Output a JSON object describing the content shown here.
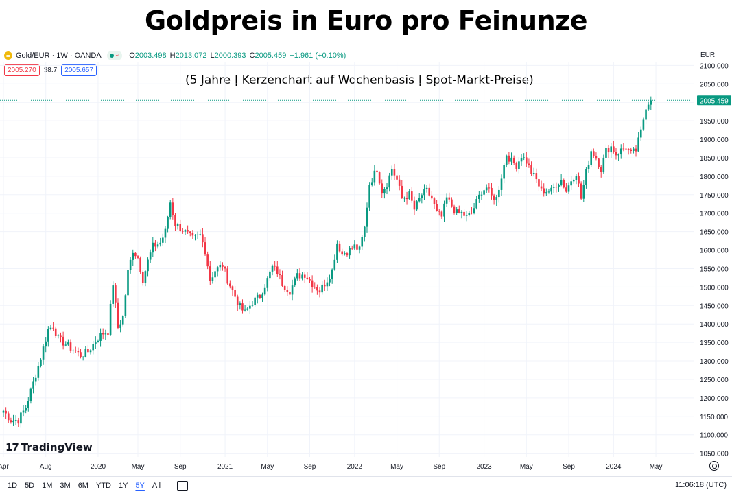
{
  "title": "Goldpreis in Euro pro Feinunze",
  "subtitle": "(5 Jahre | Kerzenchart auf Wochenbasis | Spot-Markt-Preise)",
  "symbol": {
    "name": "Gold/EUR · 1W · OANDA",
    "icon": "gold-coin-icon",
    "open_label": "O",
    "open": "2003.498",
    "high_label": "H",
    "high": "2013.072",
    "low_label": "L",
    "low": "2000.393",
    "close_label": "C",
    "close": "2005.459",
    "change": "+1.961 (+0.10%)"
  },
  "badges": {
    "bid": "2005.270",
    "spread": "38.7",
    "ask": "2005.657"
  },
  "currency": "EUR",
  "watermark": {
    "logo": "17",
    "name": "TradingView"
  },
  "colors": {
    "up": "#089981",
    "down": "#f23645",
    "grid": "#f0f3fa",
    "accent": "#2962ff"
  },
  "chart_data": {
    "type": "candlestick",
    "timeframe": "1W",
    "y_range": [
      1040,
      2110
    ],
    "y_ticks": [
      1050,
      1100,
      1150,
      1200,
      1250,
      1300,
      1350,
      1400,
      1450,
      1500,
      1550,
      1600,
      1650,
      1700,
      1750,
      1800,
      1850,
      1900,
      1950,
      2000,
      2050,
      2100
    ],
    "y_tick_labels": [
      "1050.000",
      "1100.000",
      "1150.000",
      "1200.000",
      "1250.000",
      "1300.000",
      "1350.000",
      "1400.000",
      "1450.000",
      "1500.000",
      "1550.000",
      "1600.000",
      "1650.000",
      "1700.000",
      "1750.000",
      "1800.000",
      "1850.000",
      "1900.000",
      "1950.000",
      "2000.000",
      "2050.000",
      "2100.000"
    ],
    "x_labels": [
      {
        "label": "Apr",
        "week": 0
      },
      {
        "label": "Aug",
        "week": 17
      },
      {
        "label": "2020",
        "week": 38
      },
      {
        "label": "May",
        "week": 54
      },
      {
        "label": "Sep",
        "week": 71
      },
      {
        "label": "2021",
        "week": 89
      },
      {
        "label": "May",
        "week": 106
      },
      {
        "label": "Sep",
        "week": 123
      },
      {
        "label": "2022",
        "week": 141
      },
      {
        "label": "May",
        "week": 158
      },
      {
        "label": "Sep",
        "week": 175
      },
      {
        "label": "2023",
        "week": 193
      },
      {
        "label": "May",
        "week": 210
      },
      {
        "label": "Sep",
        "week": 227
      },
      {
        "label": "2024",
        "week": 245
      },
      {
        "label": "May",
        "week": 262
      }
    ],
    "total_weeks": 270,
    "last_price": 2005.459,
    "last_price_label": "2005.459",
    "anchors": [
      [
        0,
        1165
      ],
      [
        3,
        1140
      ],
      [
        6,
        1140
      ],
      [
        9,
        1175
      ],
      [
        12,
        1240
      ],
      [
        15,
        1310
      ],
      [
        18,
        1385
      ],
      [
        20,
        1395
      ],
      [
        22,
        1360
      ],
      [
        25,
        1345
      ],
      [
        28,
        1330
      ],
      [
        31,
        1315
      ],
      [
        34,
        1325
      ],
      [
        37,
        1355
      ],
      [
        40,
        1375
      ],
      [
        42,
        1380
      ],
      [
        44,
        1510
      ],
      [
        46,
        1390
      ],
      [
        48,
        1420
      ],
      [
        50,
        1540
      ],
      [
        52,
        1600
      ],
      [
        54,
        1580
      ],
      [
        56,
        1520
      ],
      [
        58,
        1570
      ],
      [
        60,
        1610
      ],
      [
        63,
        1620
      ],
      [
        65,
        1650
      ],
      [
        67,
        1730
      ],
      [
        69,
        1670
      ],
      [
        72,
        1655
      ],
      [
        76,
        1630
      ],
      [
        79,
        1640
      ],
      [
        81,
        1600
      ],
      [
        83,
        1520
      ],
      [
        85,
        1545
      ],
      [
        88,
        1560
      ],
      [
        90,
        1520
      ],
      [
        92,
        1490
      ],
      [
        95,
        1445
      ],
      [
        97,
        1430
      ],
      [
        100,
        1460
      ],
      [
        103,
        1475
      ],
      [
        106,
        1520
      ],
      [
        108,
        1555
      ],
      [
        110,
        1540
      ],
      [
        112,
        1510
      ],
      [
        115,
        1490
      ],
      [
        118,
        1530
      ],
      [
        121,
        1535
      ],
      [
        124,
        1510
      ],
      [
        127,
        1490
      ],
      [
        130,
        1520
      ],
      [
        132,
        1545
      ],
      [
        134,
        1620
      ],
      [
        136,
        1590
      ],
      [
        139,
        1600
      ],
      [
        141,
        1610
      ],
      [
        143,
        1600
      ],
      [
        145,
        1660
      ],
      [
        147,
        1780
      ],
      [
        150,
        1820
      ],
      [
        152,
        1760
      ],
      [
        154,
        1780
      ],
      [
        156,
        1820
      ],
      [
        158,
        1790
      ],
      [
        160,
        1740
      ],
      [
        163,
        1750
      ],
      [
        165,
        1710
      ],
      [
        168,
        1750
      ],
      [
        170,
        1760
      ],
      [
        172,
        1740
      ],
      [
        174,
        1700
      ],
      [
        176,
        1690
      ],
      [
        178,
        1740
      ],
      [
        180,
        1720
      ],
      [
        182,
        1700
      ],
      [
        184,
        1700
      ],
      [
        186,
        1690
      ],
      [
        188,
        1700
      ],
      [
        190,
        1730
      ],
      [
        192,
        1760
      ],
      [
        194,
        1770
      ],
      [
        196,
        1745
      ],
      [
        198,
        1740
      ],
      [
        200,
        1800
      ],
      [
        202,
        1860
      ],
      [
        204,
        1840
      ],
      [
        206,
        1830
      ],
      [
        208,
        1855
      ],
      [
        210,
        1840
      ],
      [
        212,
        1810
      ],
      [
        214,
        1790
      ],
      [
        216,
        1760
      ],
      [
        218,
        1760
      ],
      [
        220,
        1760
      ],
      [
        222,
        1780
      ],
      [
        224,
        1790
      ],
      [
        226,
        1760
      ],
      [
        228,
        1790
      ],
      [
        230,
        1810
      ],
      [
        232,
        1740
      ],
      [
        234,
        1810
      ],
      [
        236,
        1870
      ],
      [
        238,
        1850
      ],
      [
        240,
        1820
      ],
      [
        242,
        1870
      ],
      [
        244,
        1880
      ],
      [
        246,
        1860
      ],
      [
        248,
        1870
      ],
      [
        250,
        1880
      ],
      [
        252,
        1860
      ],
      [
        254,
        1870
      ],
      [
        256,
        1920
      ],
      [
        258,
        1990
      ],
      [
        259,
        2000
      ],
      [
        260,
        2005
      ]
    ]
  }
}
